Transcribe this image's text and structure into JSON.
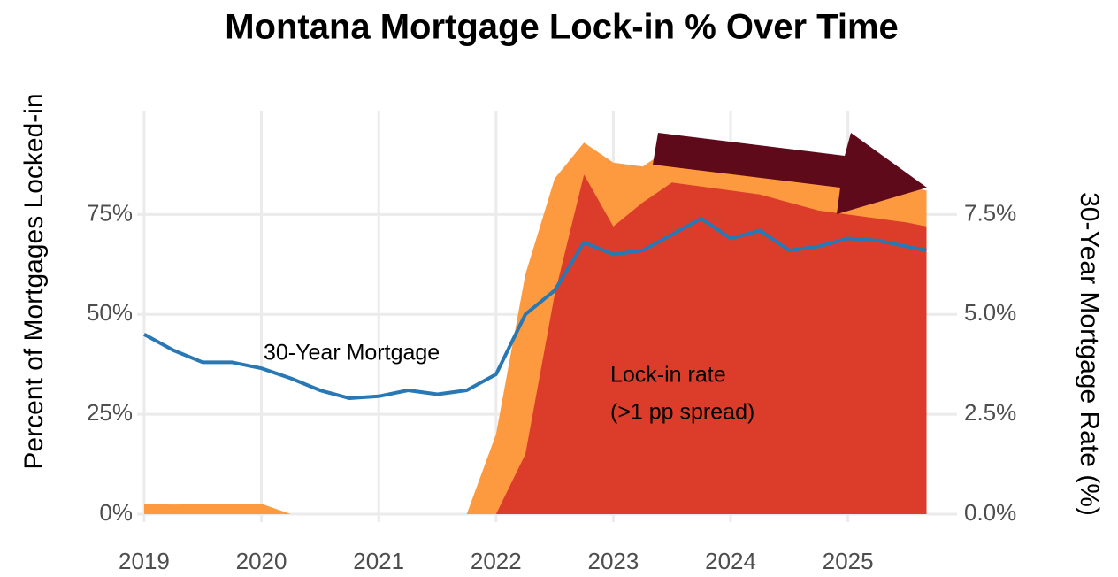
{
  "chart_data": {
    "type": "area",
    "title": "Montana Mortgage Lock-in % Over Time",
    "ylabel": "Percent of Mortgages Locked-in",
    "y2label": "30-Year Mortgage Rate (%)",
    "annotations": [
      "30-Year Mortgage",
      "Lock-in rate",
      "(>1 pp spread)"
    ],
    "x": [
      2019.0,
      2019.25,
      2019.5,
      2019.75,
      2020.0,
      2020.25,
      2020.5,
      2020.75,
      2021.0,
      2021.25,
      2021.5,
      2021.75,
      2022.0,
      2022.25,
      2022.5,
      2022.75,
      2023.0,
      2023.25,
      2023.5,
      2023.75,
      2024.0,
      2024.25,
      2024.5,
      2024.75,
      2025.0,
      2025.25,
      2025.5,
      2025.67
    ],
    "series": [
      {
        "type": "area",
        "color": "#fd9a40",
        "values": [
          2.5,
          2.4,
          2.5,
          2.5,
          2.6,
          0,
          0,
          0,
          0,
          0,
          0,
          0,
          20,
          60,
          84,
          93,
          88,
          87,
          92,
          93,
          91,
          90,
          88,
          86,
          85,
          83,
          82,
          81
        ]
      },
      {
        "type": "area",
        "color": "#dc3d2a",
        "values": [
          0,
          0,
          0,
          0,
          0,
          0,
          0,
          0,
          0,
          0,
          0,
          0,
          0,
          15,
          55,
          85,
          72,
          78,
          83,
          82,
          81,
          80,
          78,
          76,
          75,
          74,
          73,
          72
        ]
      },
      {
        "type": "line",
        "axis": "y2",
        "color": "#2878b5",
        "values": [
          4.5,
          4.1,
          3.8,
          3.8,
          3.65,
          3.4,
          3.1,
          2.9,
          2.95,
          3.1,
          3.0,
          3.1,
          3.5,
          5.0,
          5.6,
          6.8,
          6.5,
          6.6,
          7.0,
          7.4,
          6.9,
          7.1,
          6.6,
          6.7,
          6.9,
          6.85,
          6.7,
          6.6
        ]
      }
    ],
    "xlim": [
      2018.94,
      2025.93
    ],
    "xticks": [
      2019,
      2020,
      2021,
      2022,
      2023,
      2024,
      2025
    ],
    "ylim": [
      -2,
      101
    ],
    "yticks": [
      {
        "value": 0,
        "label": "0%"
      },
      {
        "value": 25,
        "label": "25%"
      },
      {
        "value": 50,
        "label": "50%"
      },
      {
        "value": 75,
        "label": "75%"
      }
    ],
    "y2lim": [
      -0.2,
      10.1
    ],
    "y2ticks": [
      {
        "value": 0,
        "label": "0.0%"
      },
      {
        "value": 2.5,
        "label": "2.5%"
      },
      {
        "value": 5,
        "label": "5.0%"
      },
      {
        "value": 7.5,
        "label": "7.5%"
      }
    ],
    "grid": true
  }
}
